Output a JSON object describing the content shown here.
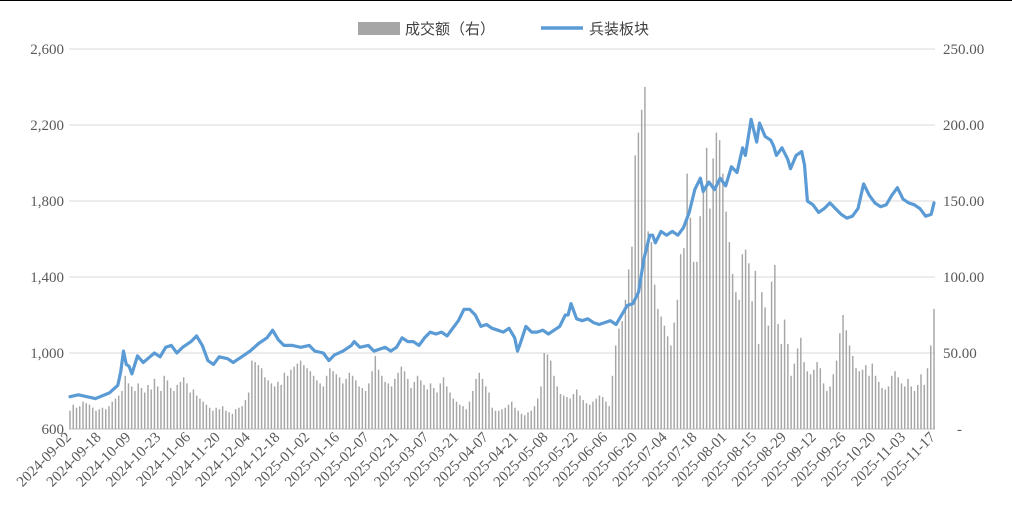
{
  "chart_data": {
    "type": "bar",
    "title": "",
    "legend": {
      "position": "top",
      "items": [
        {
          "label": "成交额（右）",
          "color": "#a6a6a6",
          "kind": "bar"
        },
        {
          "label": "兵装板块",
          "color": "#5b9bd5",
          "kind": "line"
        }
      ]
    },
    "grid": true,
    "left_axis": {
      "min": 600,
      "max": 2600,
      "ticks": [
        "600",
        "1,000",
        "1,400",
        "1,800",
        "2,200",
        "2,600"
      ]
    },
    "right_axis": {
      "min": 0,
      "max": 250,
      "ticks": [
        "-",
        "50.00",
        "100.00",
        "150.00",
        "200.00",
        "250.00"
      ]
    },
    "x_ticks": [
      "2024-09-02",
      "2024-09-18",
      "2024-10-09",
      "2024-10-23",
      "2024-11-06",
      "2024-11-20",
      "2024-12-04",
      "2024-12-18",
      "2025-01-02",
      "2025-01-16",
      "2025-02-07",
      "2025-02-21",
      "2025-03-07",
      "2025-03-21",
      "2025-04-07",
      "2025-04-21",
      "2025-05-08",
      "2025-05-22",
      "2025-06-06",
      "2025-06-20",
      "2025-07-04",
      "2025-07-18",
      "2025-08-01",
      "2025-08-15",
      "2025-08-29",
      "2025-09-12",
      "2025-09-26",
      "2025-10-20",
      "2025-11-03",
      "2025-11-17"
    ],
    "series": [
      {
        "name": "兵装板块",
        "type": "line",
        "axis": "left",
        "color": "#5b9bd5",
        "values": [
          [
            0,
            770
          ],
          [
            3,
            780
          ],
          [
            6,
            770
          ],
          [
            9,
            760
          ],
          [
            11,
            772
          ],
          [
            14,
            790
          ],
          [
            17,
            830
          ],
          [
            18,
            900
          ],
          [
            19,
            1010
          ],
          [
            20,
            940
          ],
          [
            21,
            930
          ],
          [
            22,
            890
          ],
          [
            24,
            985
          ],
          [
            26,
            950
          ],
          [
            28,
            975
          ],
          [
            30,
            1000
          ],
          [
            32,
            980
          ],
          [
            34,
            1030
          ],
          [
            36,
            1040
          ],
          [
            38,
            1000
          ],
          [
            40,
            1030
          ],
          [
            43,
            1060
          ],
          [
            45,
            1090
          ],
          [
            47,
            1040
          ],
          [
            49,
            960
          ],
          [
            51,
            940
          ],
          [
            53,
            980
          ],
          [
            56,
            970
          ],
          [
            58,
            950
          ],
          [
            61,
            980
          ],
          [
            64,
            1010
          ],
          [
            67,
            1050
          ],
          [
            70,
            1080
          ],
          [
            72,
            1120
          ],
          [
            74,
            1070
          ],
          [
            76,
            1040
          ],
          [
            79,
            1040
          ],
          [
            82,
            1030
          ],
          [
            85,
            1040
          ],
          [
            87,
            1010
          ],
          [
            90,
            1000
          ],
          [
            92,
            960
          ],
          [
            94,
            990
          ],
          [
            97,
            1010
          ],
          [
            100,
            1040
          ],
          [
            101,
            1060
          ],
          [
            103,
            1030
          ],
          [
            106,
            1040
          ],
          [
            108,
            1010
          ],
          [
            110,
            1020
          ],
          [
            112,
            1030
          ],
          [
            114,
            1010
          ],
          [
            116,
            1030
          ],
          [
            118,
            1080
          ],
          [
            120,
            1060
          ],
          [
            122,
            1060
          ],
          [
            124,
            1040
          ],
          [
            126,
            1080
          ],
          [
            128,
            1110
          ],
          [
            130,
            1100
          ],
          [
            132,
            1110
          ],
          [
            134,
            1090
          ],
          [
            136,
            1130
          ],
          [
            138,
            1170
          ],
          [
            140,
            1230
          ],
          [
            142,
            1230
          ],
          [
            144,
            1200
          ],
          [
            146,
            1140
          ],
          [
            148,
            1150
          ],
          [
            150,
            1130
          ],
          [
            152,
            1120
          ],
          [
            154,
            1110
          ],
          [
            156,
            1130
          ],
          [
            158,
            1080
          ],
          [
            159,
            1010
          ],
          [
            160,
            1050
          ],
          [
            162,
            1140
          ],
          [
            164,
            1110
          ],
          [
            166,
            1110
          ],
          [
            168,
            1120
          ],
          [
            170,
            1100
          ],
          [
            172,
            1120
          ],
          [
            174,
            1140
          ],
          [
            176,
            1200
          ],
          [
            177,
            1200
          ],
          [
            178,
            1260
          ],
          [
            180,
            1180
          ],
          [
            182,
            1170
          ],
          [
            184,
            1180
          ],
          [
            186,
            1160
          ],
          [
            188,
            1150
          ],
          [
            190,
            1160
          ],
          [
            192,
            1170
          ],
          [
            194,
            1150
          ],
          [
            196,
            1200
          ],
          [
            198,
            1250
          ],
          [
            200,
            1260
          ],
          [
            202,
            1320
          ],
          [
            204,
            1500
          ],
          [
            206,
            1620
          ],
          [
            207,
            1620
          ],
          [
            208,
            1580
          ],
          [
            210,
            1640
          ],
          [
            212,
            1620
          ],
          [
            214,
            1640
          ],
          [
            216,
            1620
          ],
          [
            218,
            1660
          ],
          [
            220,
            1740
          ],
          [
            222,
            1860
          ],
          [
            224,
            1920
          ],
          [
            225,
            1850
          ],
          [
            227,
            1900
          ],
          [
            229,
            1860
          ],
          [
            231,
            1920
          ],
          [
            233,
            1880
          ],
          [
            235,
            1980
          ],
          [
            237,
            1950
          ],
          [
            239,
            2080
          ],
          [
            240,
            2040
          ],
          [
            242,
            2230
          ],
          [
            244,
            2110
          ],
          [
            245,
            2210
          ],
          [
            247,
            2140
          ],
          [
            249,
            2120
          ],
          [
            250,
            2090
          ],
          [
            251,
            2040
          ],
          [
            253,
            2080
          ],
          [
            255,
            2020
          ],
          [
            256,
            1970
          ],
          [
            258,
            2040
          ],
          [
            260,
            2060
          ],
          [
            261,
            1990
          ],
          [
            262,
            1800
          ],
          [
            264,
            1780
          ],
          [
            266,
            1740
          ],
          [
            268,
            1760
          ],
          [
            270,
            1790
          ],
          [
            272,
            1760
          ],
          [
            274,
            1730
          ],
          [
            276,
            1710
          ],
          [
            278,
            1720
          ],
          [
            280,
            1760
          ],
          [
            282,
            1890
          ],
          [
            284,
            1830
          ],
          [
            286,
            1790
          ],
          [
            288,
            1770
          ],
          [
            290,
            1780
          ],
          [
            292,
            1830
          ],
          [
            294,
            1870
          ],
          [
            296,
            1810
          ],
          [
            298,
            1790
          ],
          [
            300,
            1780
          ],
          [
            302,
            1760
          ],
          [
            304,
            1720
          ],
          [
            306,
            1730
          ],
          [
            307,
            1790
          ]
        ]
      },
      {
        "name": "成交额（右）",
        "type": "bar",
        "axis": "right",
        "color": "#a6a6a6",
        "values": [
          12,
          16,
          14,
          15,
          18,
          17,
          16,
          14,
          12,
          13,
          14,
          13,
          15,
          18,
          20,
          22,
          25,
          35,
          30,
          28,
          25,
          30,
          27,
          24,
          29,
          26,
          33,
          28,
          25,
          35,
          32,
          27,
          25,
          29,
          31,
          34,
          30,
          24,
          26,
          22,
          20,
          18,
          16,
          14,
          12,
          14,
          13,
          15,
          12,
          11,
          10,
          13,
          14,
          15,
          19,
          24,
          45,
          44,
          42,
          40,
          34,
          32,
          30,
          28,
          31,
          29,
          37,
          35,
          39,
          41,
          43,
          45,
          42,
          40,
          38,
          35,
          32,
          30,
          28,
          35,
          40,
          38,
          36,
          34,
          30,
          33,
          37,
          35,
          32,
          28,
          27,
          25,
          30,
          38,
          48,
          39,
          35,
          31,
          30,
          28,
          33,
          37,
          41,
          38,
          33,
          27,
          31,
          35,
          32,
          29,
          26,
          30,
          27,
          24,
          30,
          34,
          28,
          24,
          20,
          18,
          16,
          15,
          13,
          18,
          25,
          33,
          37,
          33,
          28,
          24,
          14,
          12,
          12,
          13,
          14,
          16,
          18,
          14,
          12,
          10,
          9,
          11,
          12,
          15,
          20,
          28,
          50,
          49,
          45,
          35,
          28,
          23,
          22,
          21,
          20,
          23,
          26,
          22,
          19,
          17,
          16,
          18,
          20,
          22,
          21,
          18,
          15,
          35,
          55,
          66,
          71,
          85,
          105,
          120,
          180,
          195,
          210,
          225,
          130,
          123,
          95,
          79,
          74,
          68,
          61,
          55,
          70,
          85,
          115,
          119,
          168,
          139,
          110,
          110,
          140,
          160,
          185,
          145,
          178,
          195,
          190,
          168,
          143,
          123,
          102,
          90,
          85,
          115,
          118,
          109,
          84,
          104,
          56,
          90,
          80,
          68,
          97,
          108,
          69,
          56,
          72,
          56,
          35,
          43,
          53,
          60,
          44,
          38,
          36,
          39,
          44,
          40,
          30,
          25,
          28,
          36,
          45,
          63,
          75,
          65,
          55,
          48,
          40,
          38,
          39,
          42,
          35,
          43,
          35,
          31,
          27,
          26,
          28,
          35,
          38,
          34,
          30,
          28,
          33,
          28,
          25,
          29,
          36,
          29,
          40,
          55,
          79
        ]
      }
    ]
  }
}
